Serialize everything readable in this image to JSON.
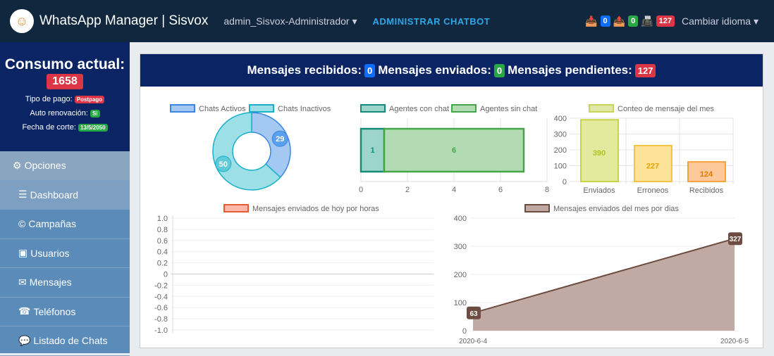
{
  "navbar": {
    "brand": "WhatsApp Manager | Sisvox",
    "user": "admin_Sisvox-Administrador",
    "chatbot": "ADMINISTRAR CHATBOT",
    "badge1": "0",
    "badge2": "0",
    "badge3": "127",
    "language": "Cambiar idioma"
  },
  "sidebar": {
    "consumo_label": "Consumo actual:",
    "consumo_value": "1658",
    "pago_label": "Tipo de pago:",
    "pago_value": "Postpago",
    "auto_label": "Auto renovación:",
    "auto_value": "Si",
    "corte_label": "Fecha de corte:",
    "corte_value": "13/5/2050",
    "items": [
      {
        "label": "Opciones",
        "icon": "cogs-icon"
      },
      {
        "label": "Dashboard",
        "icon": "list-icon"
      },
      {
        "label": "Campañas",
        "icon": "copyright-icon"
      },
      {
        "label": "Usuarios",
        "icon": "user-icon"
      },
      {
        "label": "Mensajes",
        "icon": "envelope-icon"
      },
      {
        "label": "Teléfonos",
        "icon": "fax-icon"
      },
      {
        "label": "Listado de Chats",
        "icon": "comment-icon"
      }
    ]
  },
  "header": {
    "recibidos_label": "Mensajes recibidos:",
    "recibidos": "0",
    "enviados_label": "Mensajes enviados:",
    "enviados": "0",
    "pendientes_label": "Mensajes pendientes:",
    "pendientes": "127"
  },
  "colors": {
    "navbar": "#10273d",
    "header": "#0b2564"
  },
  "chart_data": [
    {
      "type": "pie",
      "donut": true,
      "labels": [
        "Chats Activos",
        "Chats Inactivos"
      ],
      "values": [
        29,
        50
      ],
      "colors": [
        "#a3c8f2",
        "#9ddfe6"
      ],
      "legend": "top"
    },
    {
      "type": "bar",
      "orientation": "horizontal",
      "stacked": true,
      "series": [
        {
          "name": "Agentes con chat",
          "values": [
            1
          ]
        },
        {
          "name": "Agentes sin chat",
          "values": [
            6
          ]
        }
      ],
      "xlim": [
        0,
        8
      ],
      "xticks": [
        "0",
        "2",
        "4",
        "6",
        "8"
      ],
      "legend": "top"
    },
    {
      "type": "bar",
      "series": [
        {
          "name": "Conteo de mensaje del mes",
          "values": [
            390,
            227,
            124
          ]
        }
      ],
      "categories": [
        "Enviados",
        "Erroneos",
        "Recibidos"
      ],
      "ylim": [
        0,
        400
      ],
      "yticks": [
        "0",
        "100",
        "200",
        "300",
        "400"
      ],
      "legend": "top"
    },
    {
      "type": "line",
      "series": [
        {
          "name": "Mensajes enviados de hoy por horas",
          "values": []
        }
      ],
      "ylim": [
        -1,
        1
      ],
      "yticks": [
        "1.0",
        "0.8",
        "0.6",
        "0.4",
        "0.2",
        "0",
        "-0.2",
        "-0.4",
        "-0.6",
        "-0.8",
        "-1.0"
      ],
      "legend": "top"
    },
    {
      "type": "area",
      "series": [
        {
          "name": "Mensajes enviados del mes por dias",
          "values": [
            63,
            327
          ]
        }
      ],
      "x": [
        "2020-6-4",
        "2020-6-5"
      ],
      "ylim": [
        0,
        400
      ],
      "yticks": [
        "0",
        "100",
        "200",
        "300",
        "400"
      ],
      "legend": "top"
    }
  ]
}
